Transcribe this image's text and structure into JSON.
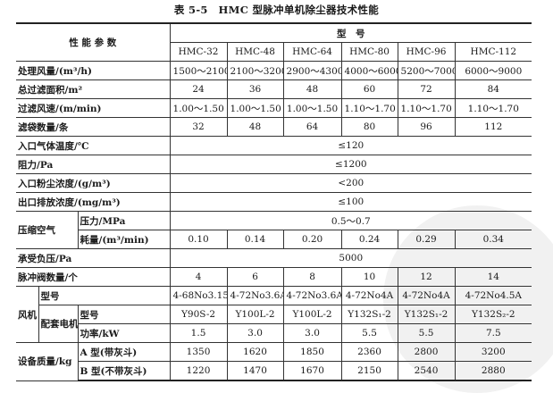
{
  "title": "表 5-5　HMC 型脉冲单机除尘器技术性能",
  "header": {
    "param": "性 能 参 数",
    "model_group": "型　号",
    "models": [
      "HMC-32",
      "HMC-48",
      "HMC-64",
      "HMC-80",
      "HMC-96",
      "HMC-112"
    ]
  },
  "rows": [
    {
      "label": "处理风量/(m³/h)",
      "values": [
        "1500～2100",
        "2100～3200",
        "2900～4300",
        "4000～6000",
        "5200～7000",
        "6000～9000"
      ]
    },
    {
      "label": "总过滤面积/m²",
      "values": [
        "24",
        "36",
        "48",
        "60",
        "72",
        "84"
      ]
    },
    {
      "label": "过滤风速/(m/min)",
      "values": [
        "1.00～1.50",
        "1.00～1.50",
        "1.00～1.50",
        "1.10～1.70",
        "1.10～1.70",
        "1.10～1.70"
      ]
    },
    {
      "label": "滤袋数量/条",
      "values": [
        "32",
        "48",
        "64",
        "80",
        "96",
        "112"
      ]
    }
  ],
  "span_rows": [
    {
      "label": "入口气体温度/℃",
      "value": "≤120"
    },
    {
      "label": "阻力/Pa",
      "value": "≤1200"
    },
    {
      "label": "入口粉尘浓度/(g/m³)",
      "value": "<200"
    },
    {
      "label": "出口排放浓度/(mg/m³)",
      "value": "≤100"
    }
  ],
  "compressed_air": {
    "label": "压缩空气",
    "pressure_label": "压力/MPa",
    "pressure_value": "0.5～0.7",
    "consumption_label": "耗量/(m³/min)",
    "consumption_values": [
      "0.10",
      "0.14",
      "0.20",
      "0.24",
      "0.29",
      "0.34"
    ]
  },
  "negative_pressure": {
    "label": "承受负压/Pa",
    "value": "5000"
  },
  "pulse_valves": {
    "label": "脉冲阀数量/个",
    "values": [
      "4",
      "6",
      "8",
      "10",
      "12",
      "14"
    ]
  },
  "fan": {
    "label": "风机",
    "model_label": "型号",
    "model_values": [
      "4-68No3.15",
      "4-72No3.6A",
      "4-72No3.6A",
      "4-72No4A",
      "4-72No4A",
      "4-72No4.5A"
    ],
    "motor_label": "配套电机",
    "motor_model_label": "型号",
    "motor_model_values": [
      "Y90S-2",
      "Y100L-2",
      "Y100L-2",
      "Y132S₁-2",
      "Y132S₁-2",
      "Y132S₂-2"
    ],
    "power_label": "功率/kW",
    "power_values": [
      "1.5",
      "3.0",
      "3.0",
      "5.5",
      "5.5",
      "7.5"
    ]
  },
  "mass": {
    "label": "设备质量/kg",
    "a_label": "A 型(带灰斗)",
    "a_values": [
      "1350",
      "1620",
      "1850",
      "2360",
      "2800",
      "3200"
    ],
    "b_label": "B 型(不带灰斗)",
    "b_values": [
      "1220",
      "1470",
      "1670",
      "2150",
      "2540",
      "2880"
    ]
  }
}
